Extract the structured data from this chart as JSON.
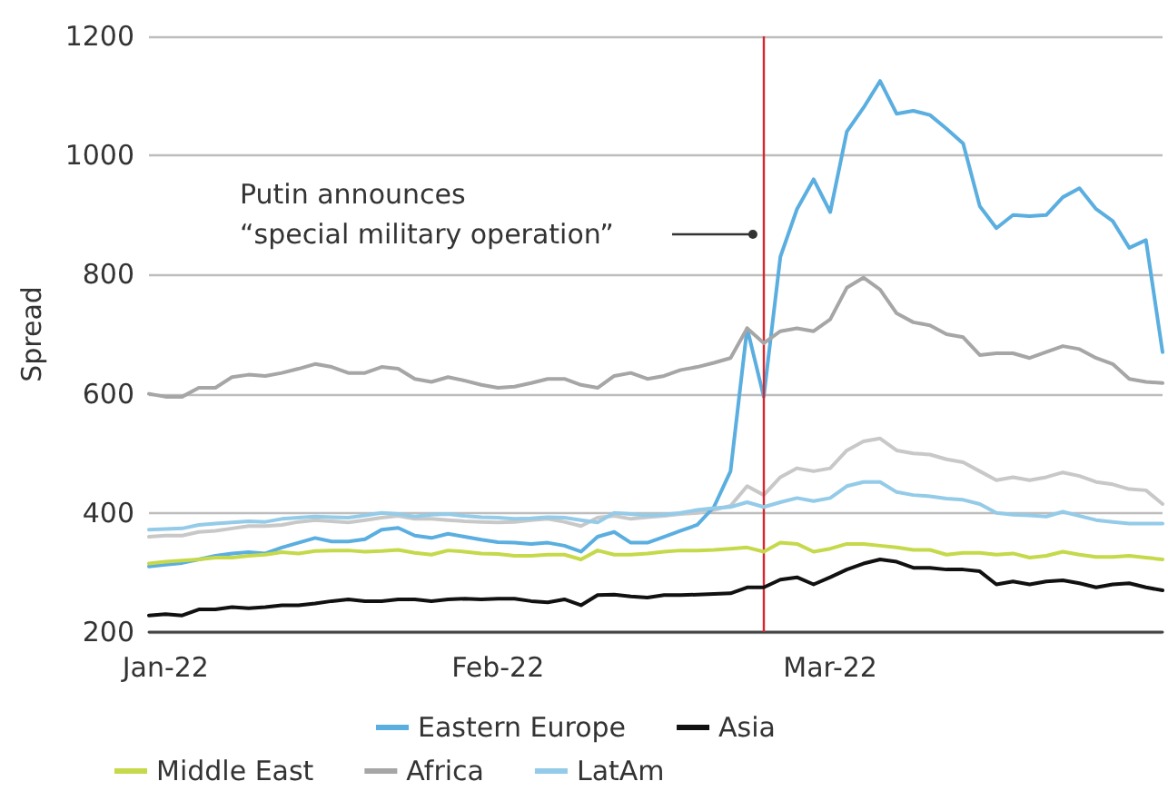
{
  "chart_data": {
    "type": "line",
    "ylabel": "Spread",
    "categories": [
      null,
      "Jan-22",
      null,
      null,
      null,
      null,
      null,
      null,
      null,
      null,
      null,
      null,
      null,
      null,
      null,
      null,
      null,
      null,
      null,
      null,
      null,
      "Feb-22",
      null,
      null,
      null,
      null,
      null,
      null,
      null,
      null,
      null,
      null,
      null,
      null,
      null,
      null,
      null,
      null,
      null,
      null,
      null,
      "Mar-22",
      null,
      null,
      null,
      null,
      null,
      null,
      null,
      null,
      null,
      null,
      null,
      null,
      null,
      null,
      null,
      null,
      null,
      null,
      null,
      null
    ],
    "series": [
      {
        "color": "#c8c8c8",
        "values": [
          360,
          362,
          362,
          368,
          370,
          374,
          378,
          378,
          380,
          385,
          388,
          386,
          384,
          388,
          392,
          395,
          390,
          390,
          388,
          386,
          385,
          384,
          385,
          388,
          390,
          385,
          378,
          392,
          395,
          390,
          393,
          395,
          398,
          400,
          405,
          412,
          445,
          430,
          460,
          475,
          470,
          475,
          505,
          520,
          525,
          505,
          500,
          498,
          490,
          485,
          470,
          455,
          460,
          455,
          460,
          468,
          462,
          452,
          448,
          440,
          438,
          415
        ]
      },
      {
        "name": "Eastern Europe",
        "color": "#5aaee0",
        "values": [
          310,
          313,
          316,
          322,
          328,
          332,
          334,
          332,
          342,
          350,
          358,
          352,
          352,
          356,
          372,
          375,
          362,
          358,
          365,
          360,
          355,
          351,
          350,
          348,
          350,
          345,
          335,
          360,
          368,
          350,
          350,
          360,
          370,
          380,
          410,
          470,
          710,
          595,
          830,
          910,
          960,
          905,
          1040,
          1080,
          1125,
          1070,
          1075,
          1068,
          1045,
          1020,
          915,
          878,
          900,
          898,
          900,
          930,
          945,
          910,
          890,
          845,
          858,
          670
        ]
      },
      {
        "name": "Asia",
        "color": "#111111",
        "values": [
          228,
          230,
          228,
          238,
          238,
          242,
          240,
          242,
          245,
          245,
          248,
          252,
          255,
          252,
          252,
          255,
          255,
          252,
          255,
          256,
          255,
          256,
          256,
          252,
          250,
          255,
          245,
          262,
          263,
          260,
          258,
          262,
          262,
          263,
          264,
          265,
          275,
          275,
          288,
          292,
          280,
          292,
          305,
          315,
          322,
          318,
          308,
          308,
          305,
          305,
          302,
          280,
          285,
          280,
          285,
          287,
          282,
          275,
          280,
          282,
          275,
          270
        ]
      },
      {
        "name": "Middle East",
        "color": "#c5d94a",
        "values": [
          315,
          318,
          320,
          322,
          325,
          325,
          328,
          330,
          334,
          332,
          336,
          337,
          337,
          335,
          336,
          338,
          333,
          330,
          337,
          335,
          332,
          331,
          328,
          328,
          330,
          330,
          322,
          337,
          330,
          330,
          332,
          335,
          337,
          337,
          338,
          340,
          342,
          335,
          350,
          348,
          335,
          340,
          348,
          348,
          345,
          342,
          338,
          338,
          330,
          333,
          333,
          330,
          332,
          325,
          328,
          335,
          330,
          326,
          326,
          328,
          325,
          322
        ]
      },
      {
        "name": "Africa",
        "color": "#a6a6a6",
        "values": [
          600,
          595,
          595,
          610,
          610,
          628,
          632,
          630,
          635,
          642,
          650,
          645,
          635,
          635,
          645,
          642,
          625,
          620,
          628,
          622,
          615,
          610,
          612,
          618,
          625,
          625,
          615,
          610,
          630,
          635,
          625,
          630,
          640,
          645,
          652,
          660,
          710,
          685,
          705,
          710,
          705,
          725,
          778,
          795,
          775,
          735,
          720,
          715,
          700,
          695,
          665,
          668,
          668,
          660,
          670,
          680,
          675,
          660,
          650,
          625,
          620,
          618
        ]
      },
      {
        "name": "LatAm",
        "color": "#93cbe8",
        "values": [
          372,
          373,
          374,
          380,
          382,
          384,
          386,
          385,
          390,
          392,
          394,
          393,
          392,
          396,
          400,
          398,
          394,
          397,
          398,
          395,
          393,
          392,
          390,
          391,
          393,
          392,
          388,
          384,
          400,
          398,
          396,
          397,
          400,
          405,
          408,
          410,
          418,
          410,
          418,
          425,
          420,
          425,
          445,
          452,
          452,
          435,
          430,
          428,
          424,
          422,
          415,
          400,
          397,
          396,
          394,
          402,
          395,
          388,
          385,
          382,
          382,
          382
        ]
      }
    ],
    "ylim": [
      200,
      1200
    ],
    "yticks": [
      200,
      400,
      600,
      800,
      1000,
      1200
    ],
    "grid": "y",
    "legend": "bottom",
    "marker": "none",
    "line_style": "solid",
    "annotations": [
      "Putin announces\n“special military operation”"
    ]
  }
}
